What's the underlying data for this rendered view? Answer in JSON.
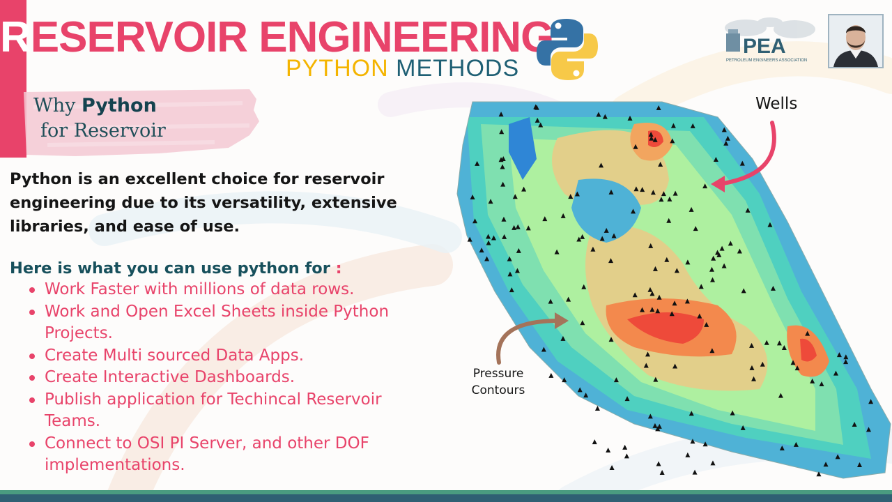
{
  "header": {
    "title_first_letter": "R",
    "title_rest": "ESERVOIR ENGINEERING",
    "subtitle_python": "PYTHON",
    "subtitle_methods": "METHODS"
  },
  "logo": {
    "text": "PEA",
    "subtext": "PETROLEUM ENGINEERS ASSOCIATION"
  },
  "section": {
    "why_prefix": "Why",
    "why_word": "Python",
    "why_line2": "for Reservoir"
  },
  "intro": "Python is an excellent choice for reservoir engineering due to its versatility, extensive libraries, and ease of use.",
  "uses": {
    "heading": "Here is what you can use python for",
    "colon": " :",
    "items": [
      "Work Faster with millions of data rows.",
      "Work and Open Excel Sheets inside Python Projects.",
      "Create Multi sourced Data Apps.",
      "Create Interactive Dashboards.",
      "Publish application for Techincal Reservoir Teams.",
      "Connect to OSI PI Server, and other DOF implementations."
    ]
  },
  "figure": {
    "wells_label": "Wells",
    "pressure_label": "Pressure Contours"
  },
  "colors": {
    "accent": "#e8436a",
    "title_teal": "#1e5f74",
    "python_yellow": "#f4b400",
    "footer_green": "#4a9b80",
    "footer_navy": "#2f5f73"
  },
  "icons": {
    "python": "python-logo-icon",
    "arrow_wells": "curved-arrow-icon",
    "arrow_pressure": "curved-arrow-icon"
  }
}
